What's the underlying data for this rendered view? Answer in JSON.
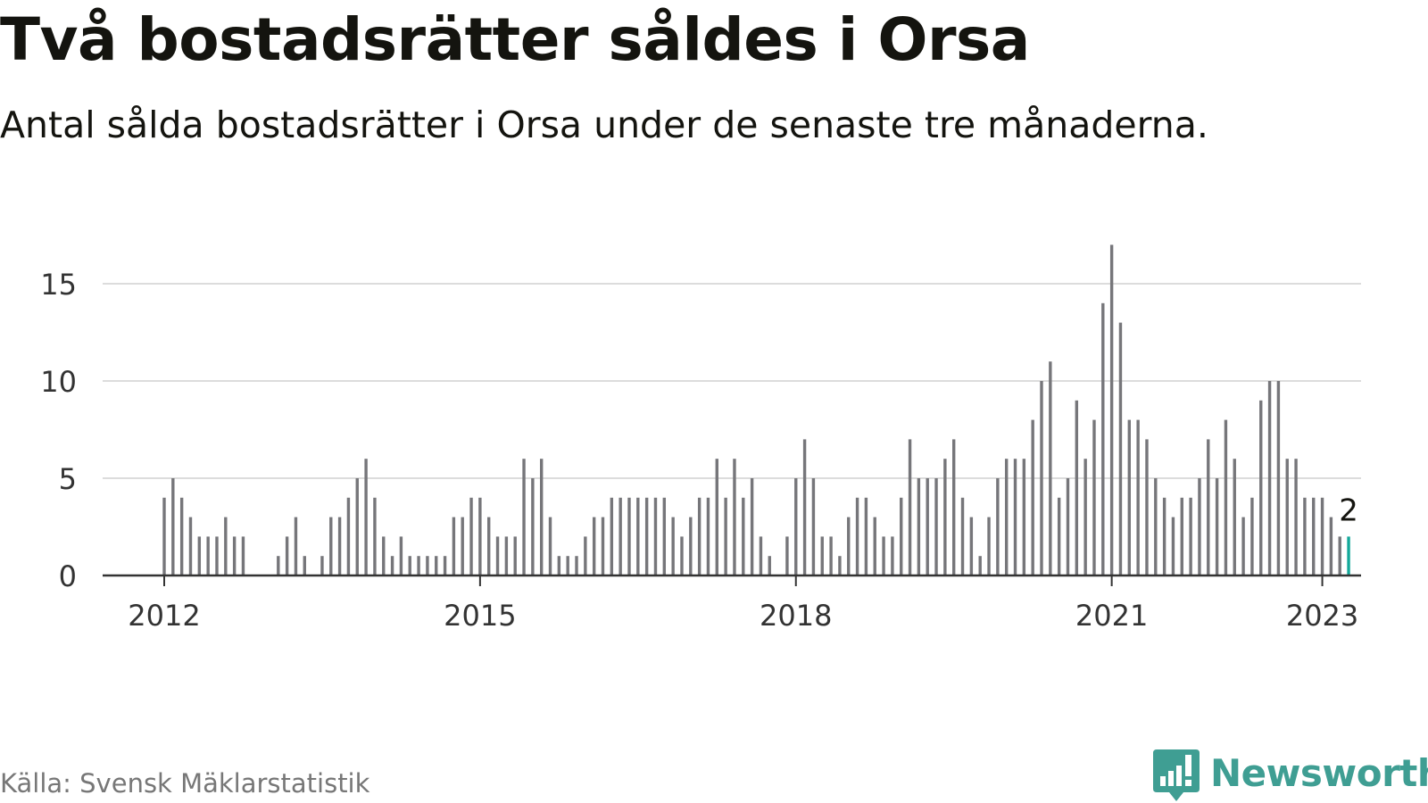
{
  "header": {
    "title": "Två bostadsrätter såldes i Orsa",
    "subtitle": "Antal sålda bostadsrätter i Orsa under de senaste tre månaderna."
  },
  "footer": {
    "source": "Källa: Svensk Mäklarstatistik",
    "brand": "Newsworthy",
    "brand_icon": "newsworthy-logo-icon"
  },
  "colors": {
    "bar": "#76767a",
    "highlight": "#13a89a",
    "grid": "#dcdcdc",
    "axis": "#333333",
    "text": "#333333",
    "brand": "#3f9e93"
  },
  "chart_data": {
    "type": "bar",
    "title": "Två bostadsrätter såldes i Orsa",
    "subtitle": "Antal sålda bostadsrätter i Orsa under de senaste tre månaderna.",
    "xlabel": "",
    "ylabel": "",
    "x_start": "2012-01",
    "x_ticks": [
      "2012",
      "2015",
      "2018",
      "2021",
      "2023"
    ],
    "y_ticks": [
      0,
      5,
      10,
      15
    ],
    "ylim": [
      0,
      17
    ],
    "grid": true,
    "legend": "none",
    "highlight_label": "2",
    "values": [
      4,
      5,
      4,
      3,
      2,
      2,
      2,
      3,
      2,
      2,
      0,
      0,
      0,
      1,
      2,
      3,
      1,
      0,
      1,
      3,
      3,
      4,
      5,
      6,
      4,
      2,
      1,
      2,
      1,
      1,
      1,
      1,
      1,
      3,
      3,
      4,
      4,
      3,
      2,
      2,
      2,
      6,
      5,
      6,
      3,
      1,
      1,
      1,
      2,
      3,
      3,
      4,
      4,
      4,
      4,
      4,
      4,
      4,
      3,
      2,
      3,
      4,
      4,
      6,
      4,
      6,
      4,
      5,
      2,
      1,
      0,
      2,
      5,
      7,
      5,
      2,
      2,
      1,
      3,
      4,
      4,
      3,
      2,
      2,
      4,
      7,
      5,
      5,
      5,
      6,
      7,
      4,
      3,
      1,
      3,
      5,
      6,
      6,
      6,
      8,
      10,
      11,
      4,
      5,
      9,
      6,
      8,
      14,
      17,
      13,
      8,
      8,
      7,
      5,
      4,
      3,
      4,
      4,
      5,
      7,
      5,
      8,
      6,
      3,
      4,
      9,
      10,
      10,
      6,
      6,
      4,
      4,
      4,
      3,
      2,
      2
    ]
  }
}
